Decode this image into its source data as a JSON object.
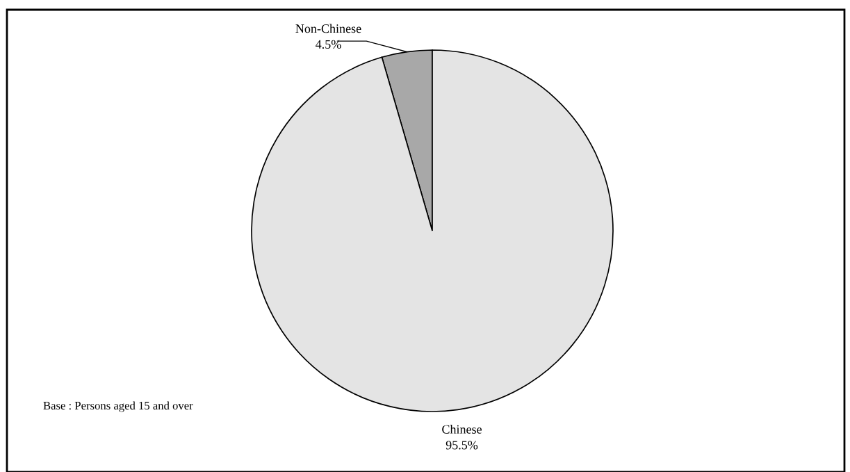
{
  "chart_data": {
    "type": "pie",
    "categories": [
      "Non-Chinese",
      "Chinese"
    ],
    "values": [
      4.5,
      95.5
    ],
    "value_labels": [
      "4.5%",
      "95.5%"
    ],
    "colors": [
      "#a8a8a8",
      "#e4e4e4"
    ],
    "annotations": [
      "Base : Persons aged 15 and over"
    ]
  }
}
